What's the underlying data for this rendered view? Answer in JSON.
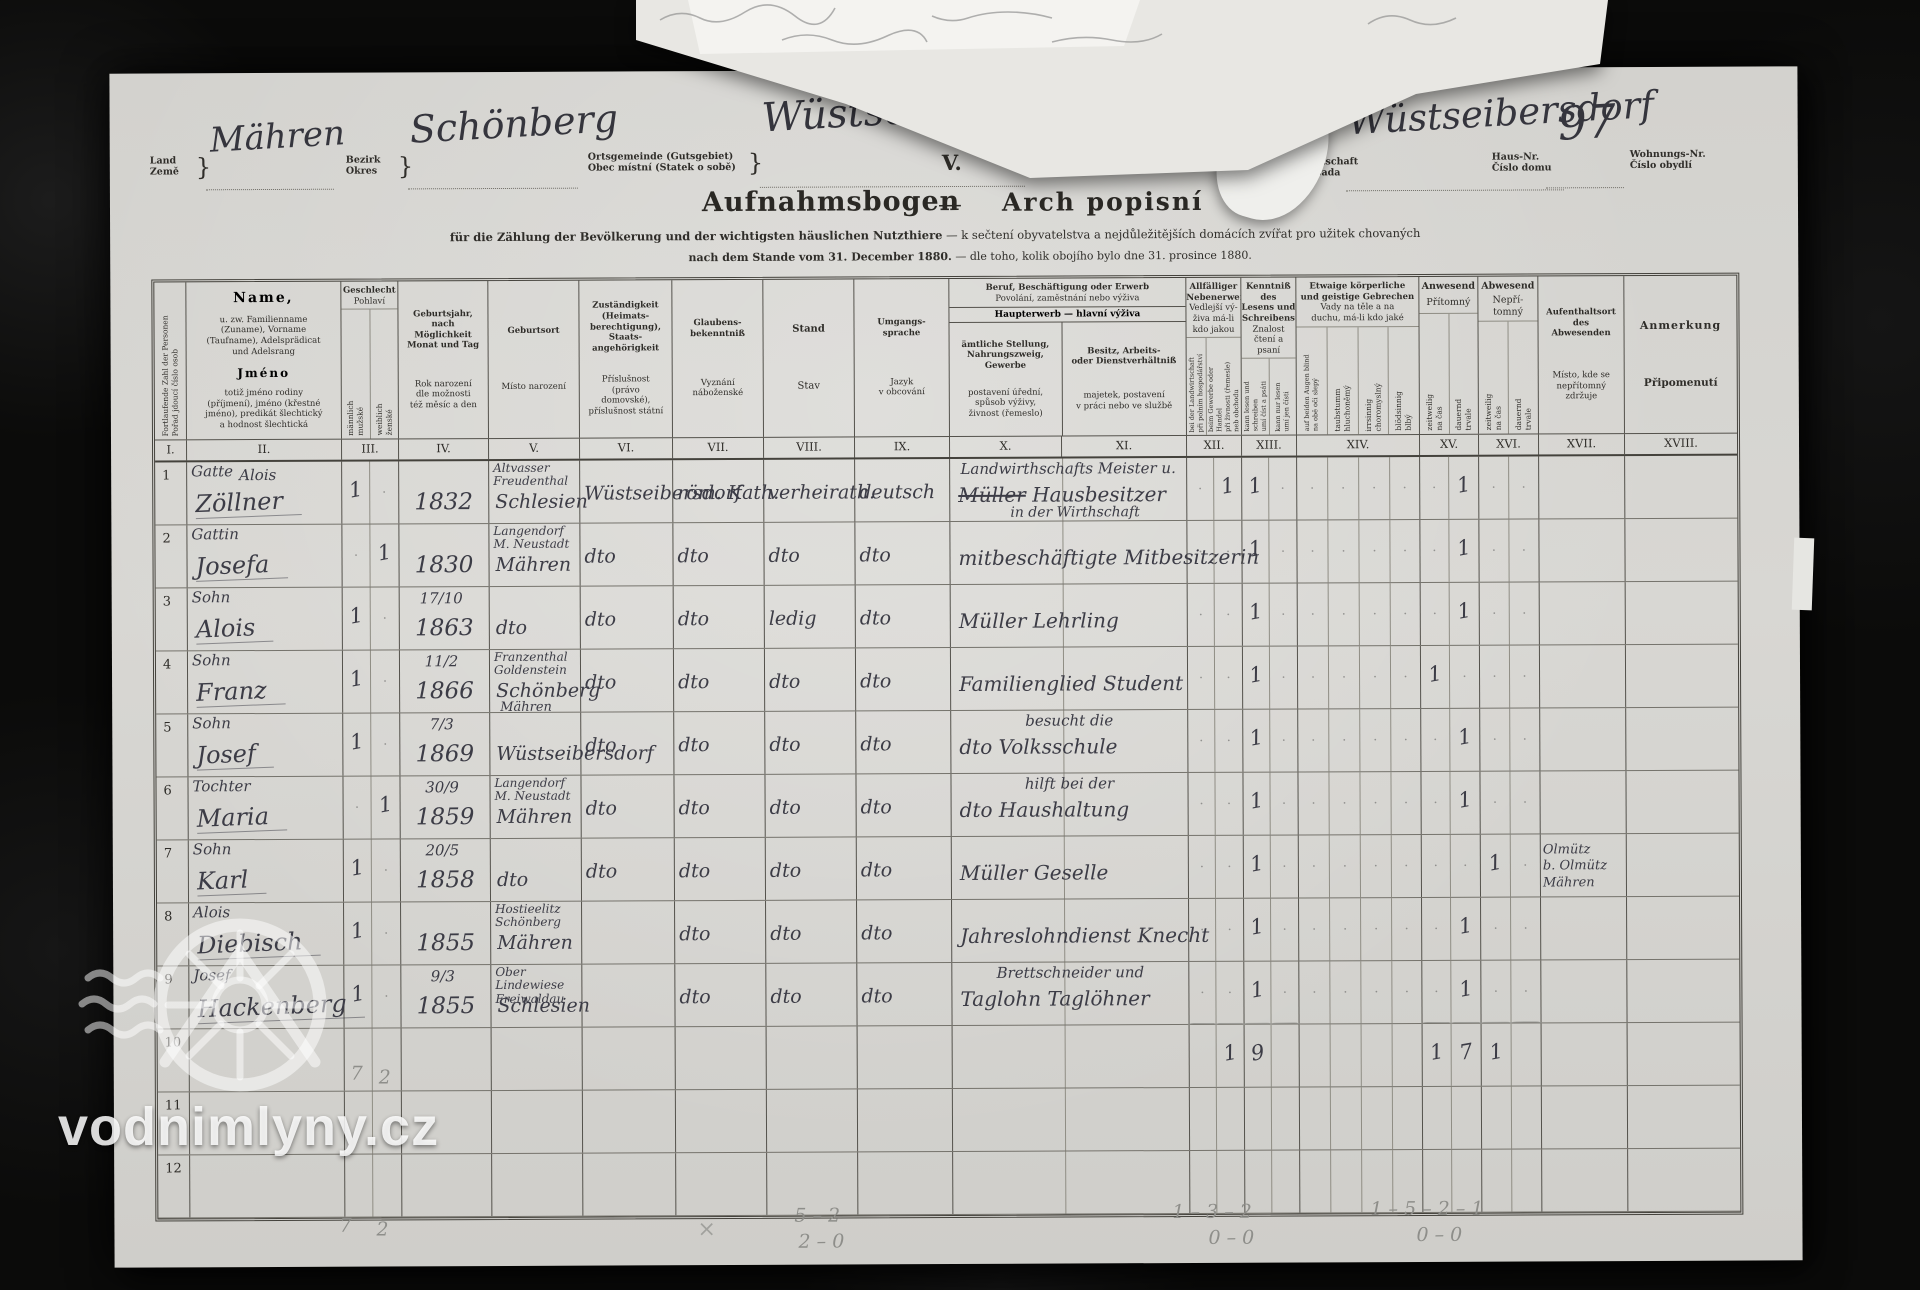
{
  "watermark": {
    "text": "vodnimlyny.cz"
  },
  "doc": {
    "brace": "}",
    "fields": {
      "land": {
        "de": "Land",
        "cs": "Země",
        "value": "Mähren"
      },
      "bezirk": {
        "de": "Bezirk",
        "cs": "Okres",
        "value": "Schönberg"
      },
      "ortsgemeinde": {
        "de": "Ortsgemeinde (Gutsgebiet)",
        "cs": "Obec místní (Statek o sobě)",
        "value": "Wüstseibersdorf"
      },
      "sheet_no": "V.",
      "ortschaft": {
        "de": "Ortschaft",
        "cs": "Osada",
        "value": "Wüstseibersdorf"
      },
      "hausnr": {
        "de": "Haus-Nr.",
        "cs": "Číslo domu",
        "value": "97"
      },
      "wohnungsnr": {
        "de": "Wohnungs-Nr.",
        "cs": "Číslo obydlí",
        "value": ""
      }
    },
    "title": {
      "de": "Aufnahmsbogen",
      "dash": "—",
      "cs": "Arch popisní",
      "sub1_de": "für die Zählung der Bevölkerung und der wichtigsten häuslichen Nutzthiere",
      "sub1_cs": "k sečtení obyvatelstva a nejdůležitějších domácích zvířat pro užitek chovaných",
      "sub2_de": "nach dem Stande vom 31. December 1880.",
      "sub2_cs": "dle toho, kolik obojího bylo dne 31. prosince 1880."
    }
  },
  "table": {
    "header": {
      "c1": "Fortlaufende Zahl der Personen\nPořad jdoucí číslo osob",
      "c2_t1": "Name,",
      "c2_de": "u. zw. Familienname\n(Zuname), Vorname\n(Taufname), Adelsprädicat\nund Adelsrang",
      "c2_t2": "Jméno",
      "c2_cs": "totiž jméno rodiny\n(příjmení), jméno (křestné\njméno), predikát šlechtický\na hodnost šlechtická",
      "c3_de": "Geschlecht",
      "c3_cs": "Pohlaví",
      "c3a": "männlich\nmužské",
      "c3b": "weiblich\nženské",
      "c4_de": "Geburtsjahr,\nnach\nMöglichkeit\nMonat und Tag",
      "c4_cs": "Rok narození\ndle možnosti\ntéž měsíc a den",
      "c5_de": "Geburtsort",
      "c5_cs": "Místo narození",
      "c6_de": "Zuständigkeit\n(Heimats-\nberechtigung),\nStaats-\nangehörigkeit",
      "c6_cs": "Příslušnost\n(právo\ndomovské),\npříslušnost státní",
      "c7_de": "Glaubens-\nbekenntniß",
      "c7_cs": "Vyznání\nnáboženské",
      "c8_de": "Stand",
      "c8_cs": "Stav",
      "c9_de": "Umgangs-\nsprache",
      "c9_cs": "Jazyk\nv obcování",
      "c1011_de": "Beruf, Beschäftigung oder Erwerb",
      "c1011_cs": "Povolání, zaměstnání nebo výživa",
      "c1011_sub": "Haupterwerb — hlavní výživa",
      "c10_de": "ämtliche Stellung,\nNahrungszweig,\nGewerbe",
      "c10_cs": "postavení úřední,\nspůsob výživy,\nživnost (řemeslo)",
      "c11_de": "Besitz, Arbeits-\noder Dienstverhältniß",
      "c11_cs": "majetek, postavení\nv práci nebo ve službě",
      "c12_de": "Allfälliger\nNebenerwerb",
      "c12_cs": "Vedlejší vý-\nživa má-li\nkdo jakou",
      "c12a": "bei der Landwirtschaft\npři polním hospodářství",
      "c12b": "beim Gewerbe oder\nHandel\npři živnosti (řemesle)\nneb obchodu",
      "c13_de": "Kenntniß des\nLesens und\nSchreibens",
      "c13_cs": "Znalost\nčtení a psaní",
      "c13a": "kann lesen und schreiben\numí číst a psáti",
      "c13b": "kann nur lesen\numí jen čísti",
      "c14_de": "Etwaige körperliche\nund geistige Gebrechen",
      "c14_cs": "Vady na těle a na\nduchu, má-li kdo jaké",
      "c14a": "auf beiden Augen blind\nna obě oči slepý",
      "c14b": "taubstumm\nhluchoněmý",
      "c14c": "irrsinnig\nchoromyslný",
      "c14d": "blödsinnig\nblbý",
      "c15_de": "Anwesend",
      "c15_cs": "Přítomný",
      "c15a": "zeitweilig\nna čas",
      "c15b": "dauernd\ntrvale",
      "c16_de": "Abwesend",
      "c16_cs": "Nepří-\ntomný",
      "c16a": "zeitweilig\nna čas",
      "c16b": "dauernd\ntrvale",
      "c17_de": "Aufenthaltsort\ndes\nAbwesenden",
      "c17_cs": "Místo, kde se\nnepřítomný\nzdržuje",
      "c18_de": "Anmerkung",
      "c18_cs": "Připomenutí"
    },
    "roman": [
      "I.",
      "II.",
      "III.",
      "IV.",
      "V.",
      "VI.",
      "VII.",
      "VIII.",
      "IX.",
      "X.",
      "XI.",
      "XII.",
      "XIII.",
      "XIV.",
      "XV.",
      "XVI.",
      "XVII.",
      "XVIII."
    ],
    "rows": [
      {
        "no": "1",
        "rel": "Gatte",
        "given": "Alois",
        "name": "Zöllner",
        "m": "1",
        "byear": "1832",
        "bptop": "Altvasser\nFreudenthal",
        "bp": "Schlesien",
        "home": "Wüstseibersdorf",
        "relig": "röm. Kath.",
        "status": "verheirath.",
        "lang": "deutsch",
        "occtop": "Landwirthschafts Meister u.",
        "occstruck": "Müller",
        "occ": "Hausbesitzer",
        "occbot": "in der Wirthschaft",
        "marks": {
          "k12b": "1",
          "k13a": "1",
          "k15b": "1"
        }
      },
      {
        "no": "2",
        "rel": "Gattin",
        "name": "Josefa",
        "f": "1",
        "byear": "1830",
        "bptop": "Langendorf\nM. Neustadt",
        "bp": "Mähren",
        "home": "dto",
        "relig": "dto",
        "status": "dto",
        "lang": "dto",
        "occ": "mitbeschäftigte Mitbesitzerin",
        "marks": {
          "k13a": "1",
          "k15b": "1"
        }
      },
      {
        "no": "3",
        "rel": "Sohn",
        "name": "Alois",
        "m": "1",
        "btop": "17/10",
        "byear": "1863",
        "bp": "dto",
        "home": "dto",
        "relig": "dto",
        "status": "ledig",
        "lang": "dto",
        "occ": "Müller Lehrling",
        "marks": {
          "k13a": "1",
          "k15b": "1"
        }
      },
      {
        "no": "4",
        "rel": "Sohn",
        "name": "Franz",
        "m": "1",
        "btop": "11/2",
        "byear": "1866",
        "bptop": "Franzenthal\nGoldenstein",
        "bp": "Schönberg",
        "bpbot": "Mähren",
        "home": "dto",
        "relig": "dto",
        "status": "dto",
        "lang": "dto",
        "occ": "Familienglied Student",
        "marks": {
          "k13a": "1",
          "k15a": "1"
        }
      },
      {
        "no": "5",
        "rel": "Sohn",
        "name": "Josef",
        "m": "1",
        "btop": "7/3",
        "byear": "1869",
        "bp": "Wüstseibersdorf",
        "home": "dto",
        "relig": "dto",
        "status": "dto",
        "lang": "dto",
        "occtop": "besucht die",
        "occ": "dto Volksschule",
        "marks": {
          "k13a": "1",
          "k15b": "1"
        }
      },
      {
        "no": "6",
        "rel": "Tochter",
        "name": "Maria",
        "f": "1",
        "btop": "30/9",
        "byear": "1859",
        "bptop": "Langendorf\nM. Neustadt",
        "bp": "Mähren",
        "home": "dto",
        "relig": "dto",
        "status": "dto",
        "lang": "dto",
        "occtop": "hilft bei der",
        "occ": "dto Haushaltung",
        "marks": {
          "k13a": "1",
          "k15b": "1"
        }
      },
      {
        "no": "7",
        "rel": "Sohn",
        "name": "Karl",
        "m": "1",
        "btop": "20/5",
        "byear": "1858",
        "bp": "dto",
        "home": "dto",
        "relig": "dto",
        "status": "dto",
        "lang": "dto",
        "occ": "Müller Geselle",
        "marks": {
          "k13a": "1",
          "k16a": "1"
        },
        "res": "Olmütz\nb. Olmütz\nMähren"
      },
      {
        "no": "8",
        "rel": "Alois",
        "name": "Diebisch",
        "m": "1",
        "byear": "1855",
        "bptop": "Hostieelitz\nSchönberg",
        "bp": "Mähren",
        "relig": "dto",
        "status": "dto",
        "lang": "dto",
        "occ": "Jahreslohndienst Knecht",
        "marks": {
          "k13a": "1",
          "k15b": "1"
        }
      },
      {
        "no": "9",
        "rel": "Josef",
        "name": "Hackenberg",
        "m": "1",
        "btop": "9/3",
        "byear": "1855",
        "bptop": "Ober Lindewiese\nFreiwaldau",
        "bp": "Schlesien",
        "relig": "dto",
        "status": "dto",
        "lang": "dto",
        "occtop": "Brettschneider und",
        "occ": "Taglohn Taglöhner",
        "marks": {
          "k13a": "1",
          "k15b": "1"
        }
      },
      {
        "no": "10",
        "pm": "7",
        "pf": "2",
        "sumrow": true,
        "marks": {
          "k12b": "1",
          "k13a": "9",
          "k15a": "1",
          "k15b": "7",
          "k16a": "1"
        }
      },
      {
        "no": "11"
      },
      {
        "no": "12"
      }
    ]
  },
  "pencil": {
    "left1": "7",
    "left2": "2",
    "cross": "×",
    "a1": "5 – 2",
    "a2": "2 – 0",
    "b1": "1 – 3 – 2",
    "b2": "0 – 0",
    "c1": "1 – 5 – 2 – 1",
    "c2": "0 – 0"
  }
}
